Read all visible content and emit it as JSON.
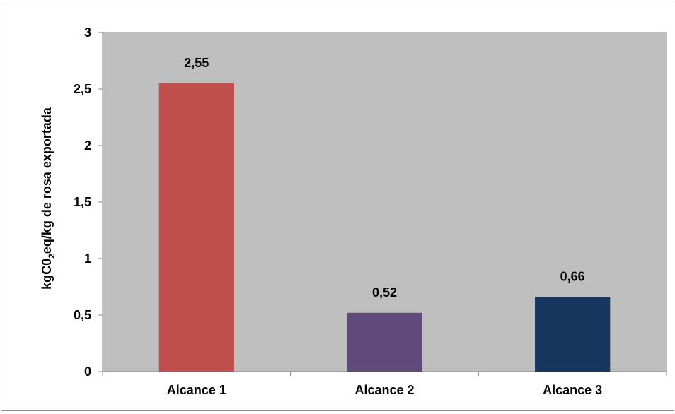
{
  "chart_data": {
    "type": "bar",
    "title": "",
    "xlabel": "",
    "ylabel": {
      "prefix": "kgC0",
      "subscript": "2",
      "suffix": "eq/kg de rosa exportada"
    },
    "categories": [
      "Alcance 1",
      "Alcance 2",
      "Alcance 3"
    ],
    "values": [
      2.55,
      0.52,
      0.66
    ],
    "data_labels": [
      "2,55",
      "0,52",
      "0,66"
    ],
    "bar_colors": [
      "#c0504d",
      "#604a7b",
      "#17375e"
    ],
    "ylim": [
      0,
      3
    ],
    "y_ticks": [
      0,
      0.5,
      1,
      1.5,
      2,
      2.5,
      3
    ],
    "y_tick_labels": [
      "0",
      "0,5",
      "1",
      "1,5",
      "2",
      "2,5",
      "3"
    ],
    "plot_background": "#bfbfbf",
    "grid": false,
    "legend": "none"
  }
}
